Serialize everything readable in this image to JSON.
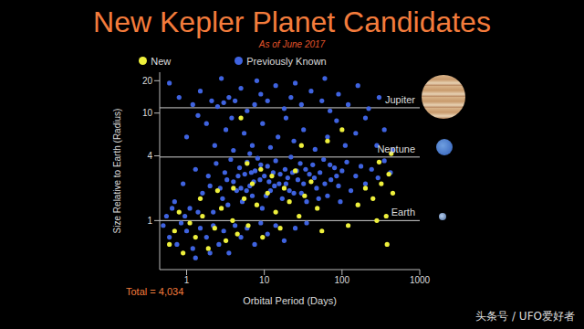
{
  "chart_data": {
    "type": "scatter",
    "title": "New Kepler Planet Candidates",
    "subtitle": "As of June 2017",
    "x_label": "Orbital Period (Days)",
    "y_label": "Size Relative to Earth (Radius)",
    "annotation": "Total = 4,034",
    "watermark": "头条号 / UFO爱好者",
    "log": true,
    "grid": false,
    "legend": "top",
    "xlim": [
      0.45,
      1000
    ],
    "xticks": [
      1,
      10,
      100,
      1000
    ],
    "ylim": [
      0.35,
      24
    ],
    "yticks": [
      1,
      4,
      10,
      20
    ],
    "reference_lines": [
      {
        "label": "Jupiter",
        "value": 11.2
      },
      {
        "label": "Neptune",
        "value": 3.9
      },
      {
        "label": "Earth",
        "value": 1
      }
    ],
    "series": [
      {
        "name": "Previously Known",
        "color": "#3f63e0",
        "marker": "circle",
        "x": [
          0.8,
          1.2,
          1.5,
          2.1,
          2.5,
          3.0,
          3.5,
          4.2,
          5,
          6,
          7.5,
          9,
          11,
          14,
          18,
          22,
          30,
          40,
          55,
          70,
          90,
          120,
          160,
          220,
          300,
          0.6,
          2.8,
          8,
          25,
          60,
          1.0,
          1.8,
          2.3,
          3.2,
          4,
          5.5,
          7,
          9.5,
          12,
          15,
          19,
          24,
          32,
          45,
          65,
          85,
          110,
          150,
          200,
          280,
          350,
          450,
          1.4,
          3.8,
          6.5,
          0.7,
          0.9,
          1.1,
          1.3,
          1.6,
          1.9,
          2.2,
          2.4,
          2.7,
          2.9,
          3.1,
          3.4,
          3.7,
          4.0,
          4.4,
          4.8,
          5.2,
          5.6,
          6.0,
          6.5,
          7.0,
          7.6,
          8.2,
          8.8,
          9.4,
          10,
          11,
          12,
          13,
          14,
          15.5,
          17,
          18.5,
          20,
          22,
          24,
          26,
          29,
          32,
          35,
          38,
          42,
          47,
          52,
          58,
          65,
          72,
          80,
          90,
          100,
          115,
          130,
          150,
          175,
          200,
          240,
          290,
          350,
          420,
          2.0,
          3.3,
          4.6,
          5.9,
          7.3,
          9,
          11.5,
          16,
          21,
          27,
          34,
          44,
          60,
          85,
          5,
          6.8,
          10.5,
          13.5,
          19,
          23,
          30,
          50,
          70,
          95,
          0.5,
          0.6,
          0.75,
          0.85,
          1.0,
          1.2,
          1.5,
          1.8,
          2.2,
          2.6,
          3.0,
          3.5,
          4.2,
          5,
          6,
          7.5,
          9,
          11,
          14,
          18,
          25,
          35,
          1.3,
          2.0,
          0.55,
          0.65,
          0.95,
          1.4
        ],
        "values": [
          14,
          12,
          16,
          13,
          11.5,
          12.5,
          14,
          13,
          17,
          10.5,
          12,
          15,
          13,
          18,
          11,
          14,
          12,
          16,
          13,
          10.5,
          15,
          12,
          18,
          11,
          14,
          19,
          21,
          20,
          19,
          21,
          6,
          8,
          5,
          7,
          4.5,
          6.5,
          5,
          8,
          4.8,
          6,
          9,
          5.5,
          7,
          4.6,
          6,
          8.5,
          5,
          6.5,
          9,
          5,
          7,
          4.5,
          9.5,
          9,
          4.2,
          1.5,
          2.2,
          1.3,
          3,
          1.8,
          2.6,
          1.2,
          3.4,
          2,
          1.6,
          2.8,
          1.4,
          3.7,
          2.3,
          1.9,
          3.1,
          1.5,
          2.7,
          3.5,
          2.1,
          1.7,
          2.9,
          3.8,
          2.4,
          1.3,
          2.6,
          3.2,
          1.9,
          2.8,
          3.6,
          2.2,
          1.6,
          3,
          2.5,
          3.9,
          1.8,
          2.9,
          3.4,
          2.2,
          1.5,
          2.7,
          3.3,
          2,
          2.8,
          3.7,
          1.7,
          2.4,
          3.1,
          2.1,
          2.9,
          3.5,
          1.9,
          2.6,
          3.2,
          2.2,
          3,
          2.5,
          3.6,
          2.8,
          2.1,
          2.4,
          2.6,
          1.9,
          2.3,
          3.3,
          2.3,
          2.7,
          1.9,
          2.4,
          3,
          2.5,
          2.2,
          2.6,
          2.0,
          2.8,
          1.7,
          2.1,
          2.2,
          2.8,
          1.8,
          1.6,
          3.3,
          1.5,
          0.9,
          0.7,
          0.6,
          0.95,
          0.8,
          0.55,
          0.85,
          0.7,
          0.9,
          0.6,
          0.8,
          0.5,
          0.9,
          0.7,
          0.85,
          0.6,
          0.95,
          0.75,
          0.9,
          0.65,
          0.85,
          0.95,
          0.45,
          0.5,
          1.1,
          1.3,
          1.1,
          1.2
        ]
      },
      {
        "name": "New",
        "color": "#eef03c",
        "marker": "circle",
        "x": [
          0.6,
          0.7,
          0.8,
          0.9,
          1.1,
          1.3,
          1.6,
          1.9,
          2.3,
          2.8,
          3.2,
          3.9,
          4.5,
          5.5,
          6.2,
          7.0,
          8.0,
          9.5,
          11,
          12.5,
          14,
          16,
          18,
          21,
          25,
          28,
          33,
          40,
          48,
          9,
          6,
          4,
          2.5,
          1.5,
          55,
          120,
          160,
          250,
          300,
          320,
          370,
          400,
          430,
          380,
          200,
          65,
          100,
          5,
          30,
          450,
          280
        ],
        "values": [
          0.6,
          0.8,
          1.2,
          0.5,
          0.95,
          0.7,
          1.1,
          0.55,
          0.85,
          1.3,
          0.65,
          1.0,
          0.75,
          1.6,
          0.9,
          2.2,
          1.4,
          0.7,
          1.8,
          2.6,
          1.2,
          0.85,
          2.0,
          1.5,
          2.9,
          1.1,
          1.7,
          2.3,
          1.3,
          3,
          3.4,
          2,
          1.9,
          1.6,
          0.8,
          0.9,
          1.4,
          1.6,
          3.5,
          2.2,
          1.1,
          2.7,
          4.2,
          0.6,
          2.0,
          5.5,
          7,
          9,
          5,
          1.8,
          1.0
        ]
      }
    ]
  }
}
